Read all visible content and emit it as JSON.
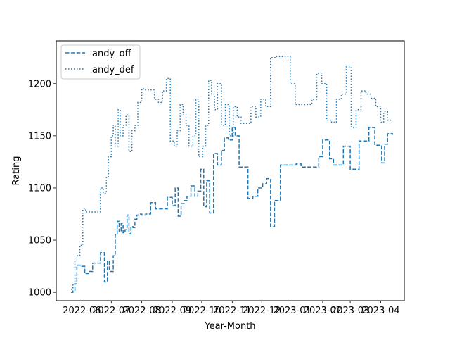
{
  "chart_data": {
    "type": "line",
    "title": "",
    "xlabel": "Year-Month",
    "ylabel": "Rating",
    "x_ticks": [
      "2022-06",
      "2022-07",
      "2022-08",
      "2022-09",
      "2022-10",
      "2022-11",
      "2022-12",
      "2023-01",
      "2023-02",
      "2023-03",
      "2023-04"
    ],
    "y_ticks": [
      1000,
      1050,
      1100,
      1150,
      1200
    ],
    "xlim": [
      "2022-05-06",
      "2023-04-25"
    ],
    "ylim": [
      992,
      1241
    ],
    "grid": false,
    "legend_position": "top-left",
    "series": [
      {
        "name": "andy_off",
        "style": "dashed",
        "color": "#1f77b4",
        "x": [
          "2022-05-21",
          "2022-05-23",
          "2022-05-25",
          "2022-05-27",
          "2022-05-29",
          "2022-06-01",
          "2022-06-04",
          "2022-06-08",
          "2022-06-12",
          "2022-06-20",
          "2022-06-24",
          "2022-06-27",
          "2022-06-29",
          "2022-07-01",
          "2022-07-03",
          "2022-07-05",
          "2022-07-07",
          "2022-07-09",
          "2022-07-11",
          "2022-07-13",
          "2022-07-15",
          "2022-07-17",
          "2022-07-19",
          "2022-07-21",
          "2022-07-23",
          "2022-07-25",
          "2022-07-27",
          "2022-07-29",
          "2022-08-01",
          "2022-08-05",
          "2022-08-10",
          "2022-08-15",
          "2022-08-18",
          "2022-08-22",
          "2022-08-27",
          "2022-09-01",
          "2022-09-04",
          "2022-09-07",
          "2022-09-10",
          "2022-09-13",
          "2022-09-16",
          "2022-09-20",
          "2022-09-24",
          "2022-09-27",
          "2022-09-30",
          "2022-10-03",
          "2022-10-06",
          "2022-10-09",
          "2022-10-13",
          "2022-10-17",
          "2022-10-21",
          "2022-10-24",
          "2022-10-28",
          "2022-11-01",
          "2022-11-04",
          "2022-11-08",
          "2022-11-12",
          "2022-11-17",
          "2022-11-22",
          "2022-11-27",
          "2022-12-02",
          "2022-12-06",
          "2022-12-10",
          "2022-12-14",
          "2022-12-20",
          "2022-12-30",
          "2023-01-05",
          "2023-01-10",
          "2023-01-20",
          "2023-01-28",
          "2023-02-01",
          "2023-02-08",
          "2023-02-12",
          "2023-02-18",
          "2023-02-22",
          "2023-03-01",
          "2023-03-10",
          "2023-03-15",
          "2023-03-20",
          "2023-03-26",
          "2023-03-31",
          "2023-04-02",
          "2023-04-05",
          "2023-04-08",
          "2023-04-13"
        ],
        "y": [
          1000,
          1002,
          1008,
          1026,
          1026,
          1025,
          1018,
          1020,
          1028,
          1038,
          1010,
          1030,
          1020,
          1020,
          1035,
          1055,
          1068,
          1058,
          1066,
          1057,
          1060,
          1074,
          1056,
          1063,
          1062,
          1070,
          1074,
          1075,
          1074,
          1075,
          1086,
          1080,
          1080,
          1080,
          1091,
          1083,
          1100,
          1073,
          1085,
          1088,
          1092,
          1102,
          1092,
          1097,
          1118,
          1082,
          1107,
          1076,
          1133,
          1122,
          1136,
          1148,
          1146,
          1158,
          1150,
          1120,
          1120,
          1090,
          1092,
          1100,
          1104,
          1109,
          1063,
          1088,
          1122,
          1122,
          1123,
          1120,
          1120,
          1130,
          1146,
          1128,
          1122,
          1122,
          1140,
          1118,
          1145,
          1145,
          1158,
          1141,
          1141,
          1124,
          1142,
          1152,
          1151
        ]
      },
      {
        "name": "andy_def",
        "style": "dotted",
        "color": "#1f77b4",
        "x": [
          "2022-05-21",
          "2022-05-23",
          "2022-05-25",
          "2022-05-27",
          "2022-05-30",
          "2022-06-02",
          "2022-06-05",
          "2022-06-10",
          "2022-06-15",
          "2022-06-20",
          "2022-06-23",
          "2022-06-26",
          "2022-06-28",
          "2022-07-01",
          "2022-07-03",
          "2022-07-05",
          "2022-07-08",
          "2022-07-10",
          "2022-07-13",
          "2022-07-16",
          "2022-07-19",
          "2022-07-22",
          "2022-07-25",
          "2022-07-28",
          "2022-08-01",
          "2022-08-04",
          "2022-08-07",
          "2022-08-10",
          "2022-08-14",
          "2022-08-18",
          "2022-08-22",
          "2022-08-26",
          "2022-08-30",
          "2022-09-03",
          "2022-09-06",
          "2022-09-09",
          "2022-09-12",
          "2022-09-15",
          "2022-09-18",
          "2022-09-22",
          "2022-09-25",
          "2022-09-28",
          "2022-10-02",
          "2022-10-05",
          "2022-10-08",
          "2022-10-11",
          "2022-10-14",
          "2022-10-17",
          "2022-10-21",
          "2022-10-25",
          "2022-10-29",
          "2022-11-02",
          "2022-11-06",
          "2022-11-10",
          "2022-11-15",
          "2022-11-20",
          "2022-11-25",
          "2022-11-30",
          "2022-12-05",
          "2022-12-10",
          "2022-12-15",
          "2022-12-20",
          "2022-12-25",
          "2022-12-30",
          "2023-01-04",
          "2023-01-09",
          "2023-01-15",
          "2023-01-21",
          "2023-01-26",
          "2023-01-31",
          "2023-02-05",
          "2023-02-10",
          "2023-02-15",
          "2023-02-20",
          "2023-02-25",
          "2023-03-02",
          "2023-03-07",
          "2023-03-12",
          "2023-03-17",
          "2023-03-22",
          "2023-03-27",
          "2023-04-01",
          "2023-04-04",
          "2023-04-08",
          "2023-04-12"
        ],
        "y": [
          1003,
          1008,
          1030,
          1035,
          1045,
          1080,
          1077,
          1077,
          1077,
          1100,
          1095,
          1110,
          1130,
          1150,
          1160,
          1140,
          1175,
          1150,
          1160,
          1170,
          1135,
          1155,
          1160,
          1182,
          1195,
          1194,
          1194,
          1194,
          1185,
          1182,
          1193,
          1205,
          1145,
          1140,
          1155,
          1180,
          1170,
          1160,
          1140,
          1150,
          1185,
          1130,
          1140,
          1160,
          1203,
          1190,
          1175,
          1200,
          1160,
          1180,
          1150,
          1178,
          1168,
          1162,
          1162,
          1178,
          1168,
          1185,
          1178,
          1225,
          1226,
          1226,
          1226,
          1200,
          1180,
          1180,
          1180,
          1185,
          1210,
          1200,
          1165,
          1163,
          1185,
          1190,
          1216,
          1158,
          1175,
          1193,
          1190,
          1186,
          1178,
          1163,
          1173,
          1165,
          1166
        ]
      }
    ]
  }
}
